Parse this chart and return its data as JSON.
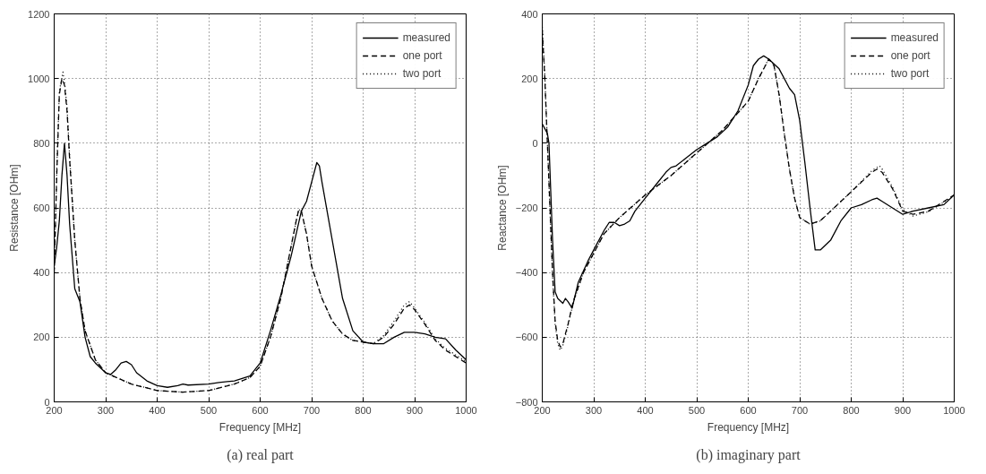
{
  "chart_data": [
    {
      "type": "line",
      "xlabel": "Frequency [MHz]",
      "ylabel": "Resistance [OHm]",
      "annotations": [
        "(a) real part"
      ],
      "xlim": [
        200,
        1000
      ],
      "ylim": [
        0,
        1200
      ],
      "xticks": [
        200,
        300,
        400,
        500,
        600,
        700,
        800,
        900,
        1000
      ],
      "yticks": [
        0,
        200,
        400,
        600,
        800,
        1000,
        1200
      ],
      "grid": true,
      "legend": "top right",
      "series": [
        {
          "name": "measured",
          "color": "#000000",
          "line_style": "solid",
          "x": [
            200,
            205,
            210,
            215,
            220,
            225,
            230,
            240,
            250,
            260,
            270,
            280,
            300,
            310,
            320,
            330,
            340,
            350,
            360,
            380,
            400,
            420,
            440,
            450,
            460,
            500,
            520,
            550,
            580,
            600,
            620,
            640,
            660,
            670,
            680,
            690,
            700,
            710,
            715,
            720,
            740,
            760,
            780,
            800,
            820,
            840,
            860,
            880,
            900,
            920,
            940,
            960,
            980,
            1000
          ],
          "values": [
            420,
            480,
            560,
            700,
            800,
            700,
            550,
            350,
            310,
            200,
            140,
            120,
            90,
            85,
            100,
            120,
            125,
            115,
            90,
            65,
            50,
            45,
            50,
            55,
            52,
            55,
            60,
            65,
            80,
            120,
            220,
            330,
            450,
            520,
            590,
            620,
            680,
            740,
            730,
            680,
            500,
            320,
            220,
            185,
            180,
            180,
            200,
            215,
            215,
            210,
            200,
            195,
            160,
            130
          ]
        },
        {
          "name": "one port",
          "color": "#000000",
          "line_style": "dashed",
          "x": [
            200,
            205,
            210,
            215,
            220,
            225,
            230,
            240,
            250,
            260,
            280,
            300,
            350,
            400,
            450,
            500,
            550,
            580,
            600,
            620,
            640,
            660,
            670,
            675,
            680,
            690,
            700,
            720,
            740,
            760,
            780,
            800,
            820,
            840,
            860,
            880,
            890,
            900,
            920,
            940,
            960,
            980,
            1000
          ],
          "values": [
            400,
            700,
            950,
            1000,
            980,
            900,
            750,
            500,
            320,
            220,
            130,
            90,
            55,
            35,
            30,
            35,
            55,
            75,
            110,
            200,
            320,
            480,
            560,
            595,
            590,
            520,
            420,
            320,
            250,
            210,
            190,
            185,
            180,
            200,
            240,
            290,
            300,
            285,
            240,
            190,
            160,
            140,
            120
          ]
        },
        {
          "name": "two port",
          "color": "#000000",
          "line_style": "dotted",
          "x": [
            200,
            205,
            210,
            217,
            220,
            225,
            230,
            240,
            250,
            260,
            280,
            300,
            350,
            400,
            450,
            500,
            550,
            580,
            600,
            620,
            640,
            660,
            670,
            675,
            680,
            690,
            700,
            720,
            740,
            760,
            780,
            800,
            820,
            840,
            860,
            880,
            890,
            900,
            920,
            940,
            960,
            980,
            1000
          ],
          "values": [
            400,
            720,
            960,
            1020,
            990,
            910,
            760,
            500,
            320,
            220,
            130,
            90,
            55,
            35,
            30,
            35,
            55,
            75,
            110,
            200,
            320,
            480,
            560,
            595,
            590,
            520,
            420,
            320,
            250,
            210,
            190,
            185,
            180,
            205,
            250,
            300,
            310,
            290,
            245,
            195,
            165,
            145,
            125
          ]
        }
      ]
    },
    {
      "type": "line",
      "xlabel": "Frequency [MHz]",
      "ylabel": "Reactance [OHm]",
      "annotations": [
        "(b) imaginary part"
      ],
      "xlim": [
        200,
        1000
      ],
      "ylim": [
        -800,
        400
      ],
      "xticks": [
        200,
        300,
        400,
        500,
        600,
        700,
        800,
        900,
        1000
      ],
      "yticks": [
        -800,
        -600,
        -400,
        -200,
        0,
        200,
        400
      ],
      "grid": true,
      "legend": "top right",
      "series": [
        {
          "name": "measured",
          "color": "#000000",
          "line_style": "solid",
          "x": [
            200,
            205,
            210,
            213,
            220,
            225,
            230,
            240,
            245,
            250,
            258,
            270,
            290,
            300,
            320,
            330,
            340,
            350,
            360,
            370,
            380,
            400,
            420,
            440,
            450,
            460,
            480,
            500,
            520,
            540,
            560,
            580,
            600,
            610,
            620,
            630,
            640,
            660,
            680,
            690,
            700,
            710,
            720,
            730,
            740,
            760,
            780,
            800,
            820,
            840,
            850,
            860,
            880,
            900,
            920,
            950,
            980,
            1000
          ],
          "values": [
            60,
            45,
            30,
            0,
            -300,
            -460,
            -480,
            -495,
            -480,
            -490,
            -510,
            -430,
            -360,
            -330,
            -270,
            -245,
            -245,
            -255,
            -250,
            -240,
            -210,
            -170,
            -130,
            -90,
            -75,
            -70,
            -45,
            -20,
            0,
            20,
            50,
            100,
            180,
            240,
            260,
            270,
            260,
            230,
            170,
            150,
            70,
            -60,
            -200,
            -330,
            -330,
            -300,
            -240,
            -200,
            -190,
            -175,
            -170,
            -180,
            -200,
            -220,
            -210,
            -200,
            -190,
            -160
          ]
        },
        {
          "name": "one port",
          "color": "#000000",
          "line_style": "dashed",
          "x": [
            200,
            205,
            210,
            215,
            220,
            225,
            230,
            235,
            240,
            250,
            260,
            280,
            300,
            320,
            350,
            400,
            450,
            500,
            550,
            600,
            620,
            640,
            650,
            660,
            670,
            680,
            690,
            700,
            720,
            740,
            760,
            780,
            800,
            820,
            840,
            850,
            860,
            880,
            900,
            920,
            950,
            1000
          ],
          "values": [
            350,
            200,
            0,
            -200,
            -400,
            -550,
            -610,
            -630,
            -620,
            -560,
            -490,
            -400,
            -340,
            -280,
            -230,
            -160,
            -100,
            -30,
            40,
            130,
            200,
            260,
            240,
            150,
            30,
            -80,
            -170,
            -230,
            -250,
            -240,
            -210,
            -180,
            -150,
            -120,
            -90,
            -80,
            -90,
            -140,
            -210,
            -220,
            -210,
            -160
          ]
        },
        {
          "name": "two port",
          "color": "#000000",
          "line_style": "dotted",
          "x": [
            200,
            205,
            210,
            215,
            220,
            225,
            230,
            235,
            240,
            250,
            260,
            280,
            300,
            320,
            350,
            400,
            450,
            500,
            550,
            600,
            620,
            640,
            650,
            660,
            670,
            680,
            690,
            700,
            720,
            740,
            760,
            780,
            800,
            820,
            840,
            855,
            860,
            880,
            900,
            920,
            950,
            1000
          ],
          "values": [
            360,
            210,
            0,
            -210,
            -410,
            -560,
            -620,
            -640,
            -625,
            -565,
            -495,
            -400,
            -340,
            -280,
            -230,
            -160,
            -100,
            -30,
            40,
            130,
            200,
            262,
            242,
            150,
            30,
            -80,
            -170,
            -230,
            -250,
            -240,
            -210,
            -180,
            -150,
            -118,
            -85,
            -70,
            -80,
            -135,
            -205,
            -225,
            -212,
            -162
          ]
        }
      ]
    }
  ]
}
